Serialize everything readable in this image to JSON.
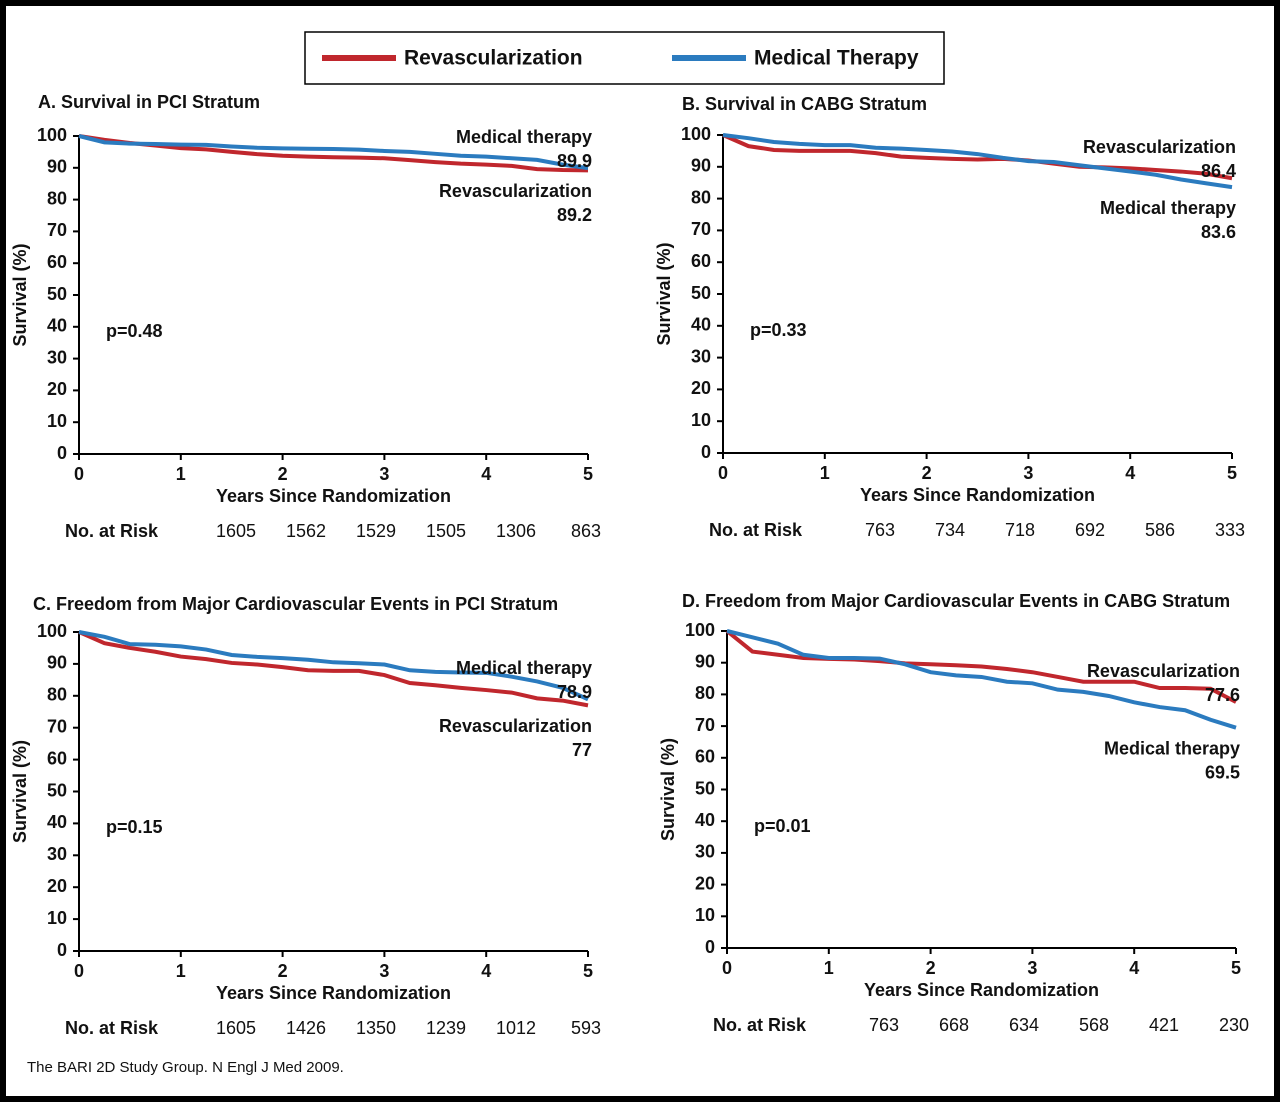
{
  "legend": {
    "items": [
      {
        "label": "Revascularization",
        "color": "#c0272d"
      },
      {
        "label": "Medical Therapy",
        "color": "#2b7bbf"
      }
    ]
  },
  "chart_data": [
    {
      "type": "line",
      "title": "A. Survival in PCI Stratum",
      "xlabel": "Years Since Randomization",
      "ylabel": "Survival (%)",
      "x": [
        0,
        0.25,
        0.5,
        0.75,
        1,
        1.25,
        1.5,
        1.75,
        2,
        2.25,
        2.5,
        2.75,
        3,
        3.25,
        3.5,
        3.75,
        4,
        4.25,
        4.5,
        4.75,
        5
      ],
      "xlim": [
        0,
        5
      ],
      "xticks": [
        0,
        1,
        2,
        3,
        4,
        5
      ],
      "ylim": [
        0,
        100
      ],
      "yticks": [
        0,
        10,
        20,
        30,
        40,
        50,
        60,
        70,
        80,
        90,
        100
      ],
      "series": [
        {
          "name": "Revascularization",
          "color": "#c0272d",
          "end_value": 89.2,
          "values": [
            100,
            98.8,
            97.8,
            97,
            96.2,
            95.8,
            95,
            94.3,
            93.8,
            93.5,
            93.3,
            93.2,
            93,
            92.4,
            91.8,
            91.3,
            91,
            90.6,
            89.6,
            89.3,
            89.2
          ]
        },
        {
          "name": "Medical therapy",
          "color": "#2b7bbf",
          "end_value": 89.9,
          "values": [
            100,
            98,
            97.6,
            97.5,
            97.3,
            97.2,
            96.7,
            96.3,
            96.1,
            96,
            95.9,
            95.7,
            95.3,
            95,
            94.4,
            93.8,
            93.5,
            93,
            92.5,
            91,
            89.9
          ]
        }
      ],
      "annotation": "p=0.48",
      "at_risk_label": "No. at Risk",
      "at_risk": [
        1605,
        1562,
        1529,
        1505,
        1306,
        863
      ]
    },
    {
      "type": "line",
      "title": "B. Survival in CABG Stratum",
      "xlabel": "Years Since Randomization",
      "ylabel": "Survival (%)",
      "x": [
        0,
        0.25,
        0.5,
        0.75,
        1,
        1.25,
        1.5,
        1.75,
        2,
        2.25,
        2.5,
        2.75,
        3,
        3.25,
        3.5,
        3.75,
        4,
        4.25,
        4.5,
        4.75,
        5
      ],
      "xlim": [
        0,
        5
      ],
      "xticks": [
        0,
        1,
        2,
        3,
        4,
        5
      ],
      "ylim": [
        0,
        100
      ],
      "yticks": [
        0,
        10,
        20,
        30,
        40,
        50,
        60,
        70,
        80,
        90,
        100
      ],
      "series": [
        {
          "name": "Revascularization",
          "color": "#c0272d",
          "end_value": 86.4,
          "values": [
            100,
            96.5,
            95.3,
            95,
            95,
            95,
            94.3,
            93.2,
            92.8,
            92.5,
            92.3,
            92.5,
            92,
            91,
            90,
            89.8,
            89.5,
            89,
            88.5,
            87.8,
            86.4
          ]
        },
        {
          "name": "Medical therapy",
          "color": "#2b7bbf",
          "end_value": 83.6,
          "values": [
            100,
            99,
            97.8,
            97.2,
            96.8,
            96.8,
            96,
            95.7,
            95.3,
            94.8,
            94,
            92.8,
            91.8,
            91.5,
            90.5,
            89.5,
            88.5,
            87.5,
            86,
            84.8,
            83.6
          ]
        }
      ],
      "annotation": "p=0.33",
      "at_risk_label": "No. at Risk",
      "at_risk": [
        763,
        734,
        718,
        692,
        586,
        333
      ]
    },
    {
      "type": "line",
      "title": "C. Freedom from Major Cardiovascular Events in PCI Stratum",
      "xlabel": "Years Since Randomization",
      "ylabel": "Survival (%)",
      "x": [
        0,
        0.25,
        0.5,
        0.75,
        1,
        1.25,
        1.5,
        1.75,
        2,
        2.25,
        2.5,
        2.75,
        3,
        3.25,
        3.5,
        3.75,
        4,
        4.25,
        4.5,
        4.75,
        5
      ],
      "xlim": [
        0,
        5
      ],
      "xticks": [
        0,
        1,
        2,
        3,
        4,
        5
      ],
      "ylim": [
        0,
        100
      ],
      "yticks": [
        0,
        10,
        20,
        30,
        40,
        50,
        60,
        70,
        80,
        90,
        100
      ],
      "series": [
        {
          "name": "Revascularization",
          "color": "#c0272d",
          "end_value": 77.0,
          "values": [
            100,
            96.5,
            95,
            93.8,
            92.3,
            91.5,
            90.3,
            89.8,
            89,
            88,
            87.8,
            87.8,
            86.5,
            84,
            83.3,
            82.5,
            81.8,
            81,
            79.2,
            78.5,
            77.0
          ]
        },
        {
          "name": "Medical therapy",
          "color": "#2b7bbf",
          "end_value": 78.9,
          "values": [
            100,
            98.5,
            96.2,
            96,
            95.5,
            94.5,
            92.8,
            92.2,
            91.8,
            91.3,
            90.5,
            90.2,
            89.8,
            88,
            87.5,
            87.3,
            87.2,
            86,
            84.5,
            82.5,
            78.9
          ]
        }
      ],
      "annotation": "p=0.15",
      "at_risk_label": "No. at Risk",
      "at_risk": [
        1605,
        1426,
        1350,
        1239,
        1012,
        593
      ]
    },
    {
      "type": "line",
      "title": "D. Freedom from Major Cardiovascular Events in CABG Stratum",
      "xlabel": "Years Since Randomization",
      "ylabel": "Survival (%)",
      "x": [
        0,
        0.25,
        0.5,
        0.75,
        1,
        1.25,
        1.5,
        1.75,
        2,
        2.25,
        2.5,
        2.75,
        3,
        3.25,
        3.5,
        3.75,
        4,
        4.25,
        4.5,
        4.75,
        5
      ],
      "xlim": [
        0,
        5
      ],
      "xticks": [
        0,
        1,
        2,
        3,
        4,
        5
      ],
      "ylim": [
        0,
        100
      ],
      "yticks": [
        0,
        10,
        20,
        30,
        40,
        50,
        60,
        70,
        80,
        90,
        100
      ],
      "series": [
        {
          "name": "Revascularization",
          "color": "#c0272d",
          "end_value": 77.6,
          "values": [
            100,
            93.5,
            92.5,
            91.5,
            91.2,
            91,
            90.5,
            89.8,
            89.5,
            89.2,
            88.8,
            88,
            87,
            85.5,
            84,
            84,
            84,
            82,
            82,
            81.8,
            77.6
          ]
        },
        {
          "name": "Medical therapy",
          "color": "#2b7bbf",
          "end_value": 69.5,
          "values": [
            100,
            98,
            96,
            92.5,
            91.5,
            91.5,
            91.3,
            89.5,
            87,
            86,
            85.5,
            84,
            83.5,
            81.5,
            80.8,
            79.5,
            77.5,
            76,
            75,
            72,
            69.5
          ]
        }
      ],
      "annotation": "p=0.01",
      "at_risk_label": "No. at Risk",
      "at_risk": [
        763,
        668,
        634,
        568,
        421,
        230
      ]
    }
  ],
  "footer": "The BARI 2D Study Group. N Engl J Med 2009."
}
